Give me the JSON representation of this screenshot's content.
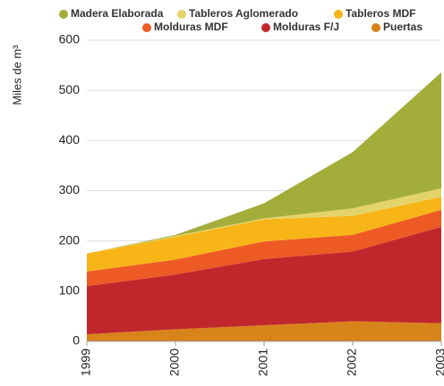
{
  "chart_data": {
    "type": "stacked_area",
    "ylabel": "Miles de m³",
    "categories": [
      "1999",
      "2000",
      "2001",
      "2002",
      "2003"
    ],
    "series": [
      {
        "name": "Puertas",
        "color": "#d7841a",
        "values": [
          14,
          24,
          32,
          40,
          36
        ]
      },
      {
        "name": "Molduras F/J",
        "color": "#c0272d",
        "values": [
          96,
          109,
          132,
          139,
          192
        ]
      },
      {
        "name": "Molduras MDF",
        "color": "#ee5a24",
        "values": [
          29,
          30,
          35,
          33,
          34
        ]
      },
      {
        "name": "Tableros MDF",
        "color": "#f7b518",
        "values": [
          36,
          45,
          44,
          38,
          26
        ]
      },
      {
        "name": "Tableros Aglomerado",
        "color": "#e3d46a",
        "values": [
          0,
          2,
          2,
          15,
          17
        ]
      },
      {
        "name": "Madera Elaborada",
        "color": "#a3ad3a",
        "values": [
          0,
          2,
          30,
          112,
          231
        ]
      }
    ],
    "ylim": [
      0,
      600
    ],
    "yticks": [
      0,
      100,
      200,
      300,
      400,
      500,
      600
    ],
    "grid": true
  }
}
